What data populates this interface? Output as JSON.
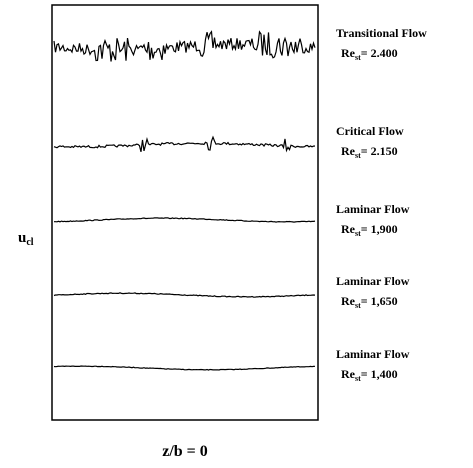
{
  "y_label": {
    "main": "u",
    "sub": "cl"
  },
  "x_label": "z/b = 0",
  "traces": [
    {
      "name": "Transitional Flow",
      "re": "Re",
      "re_sub": "st",
      "re_value": "= 2.400"
    },
    {
      "name": "Critical Flow",
      "re": "Re",
      "re_sub": "st",
      "re_value": "= 2.150"
    },
    {
      "name": "Laminar Flow",
      "re": "Re",
      "re_sub": "st",
      "re_value": "= 1,900"
    },
    {
      "name": "Laminar Flow",
      "re": "Re",
      "re_sub": "st",
      "re_value": "= 1,650"
    },
    {
      "name": "Laminar Flow",
      "re": "Re",
      "re_sub": "st",
      "re_value": "= 1,400"
    }
  ]
}
